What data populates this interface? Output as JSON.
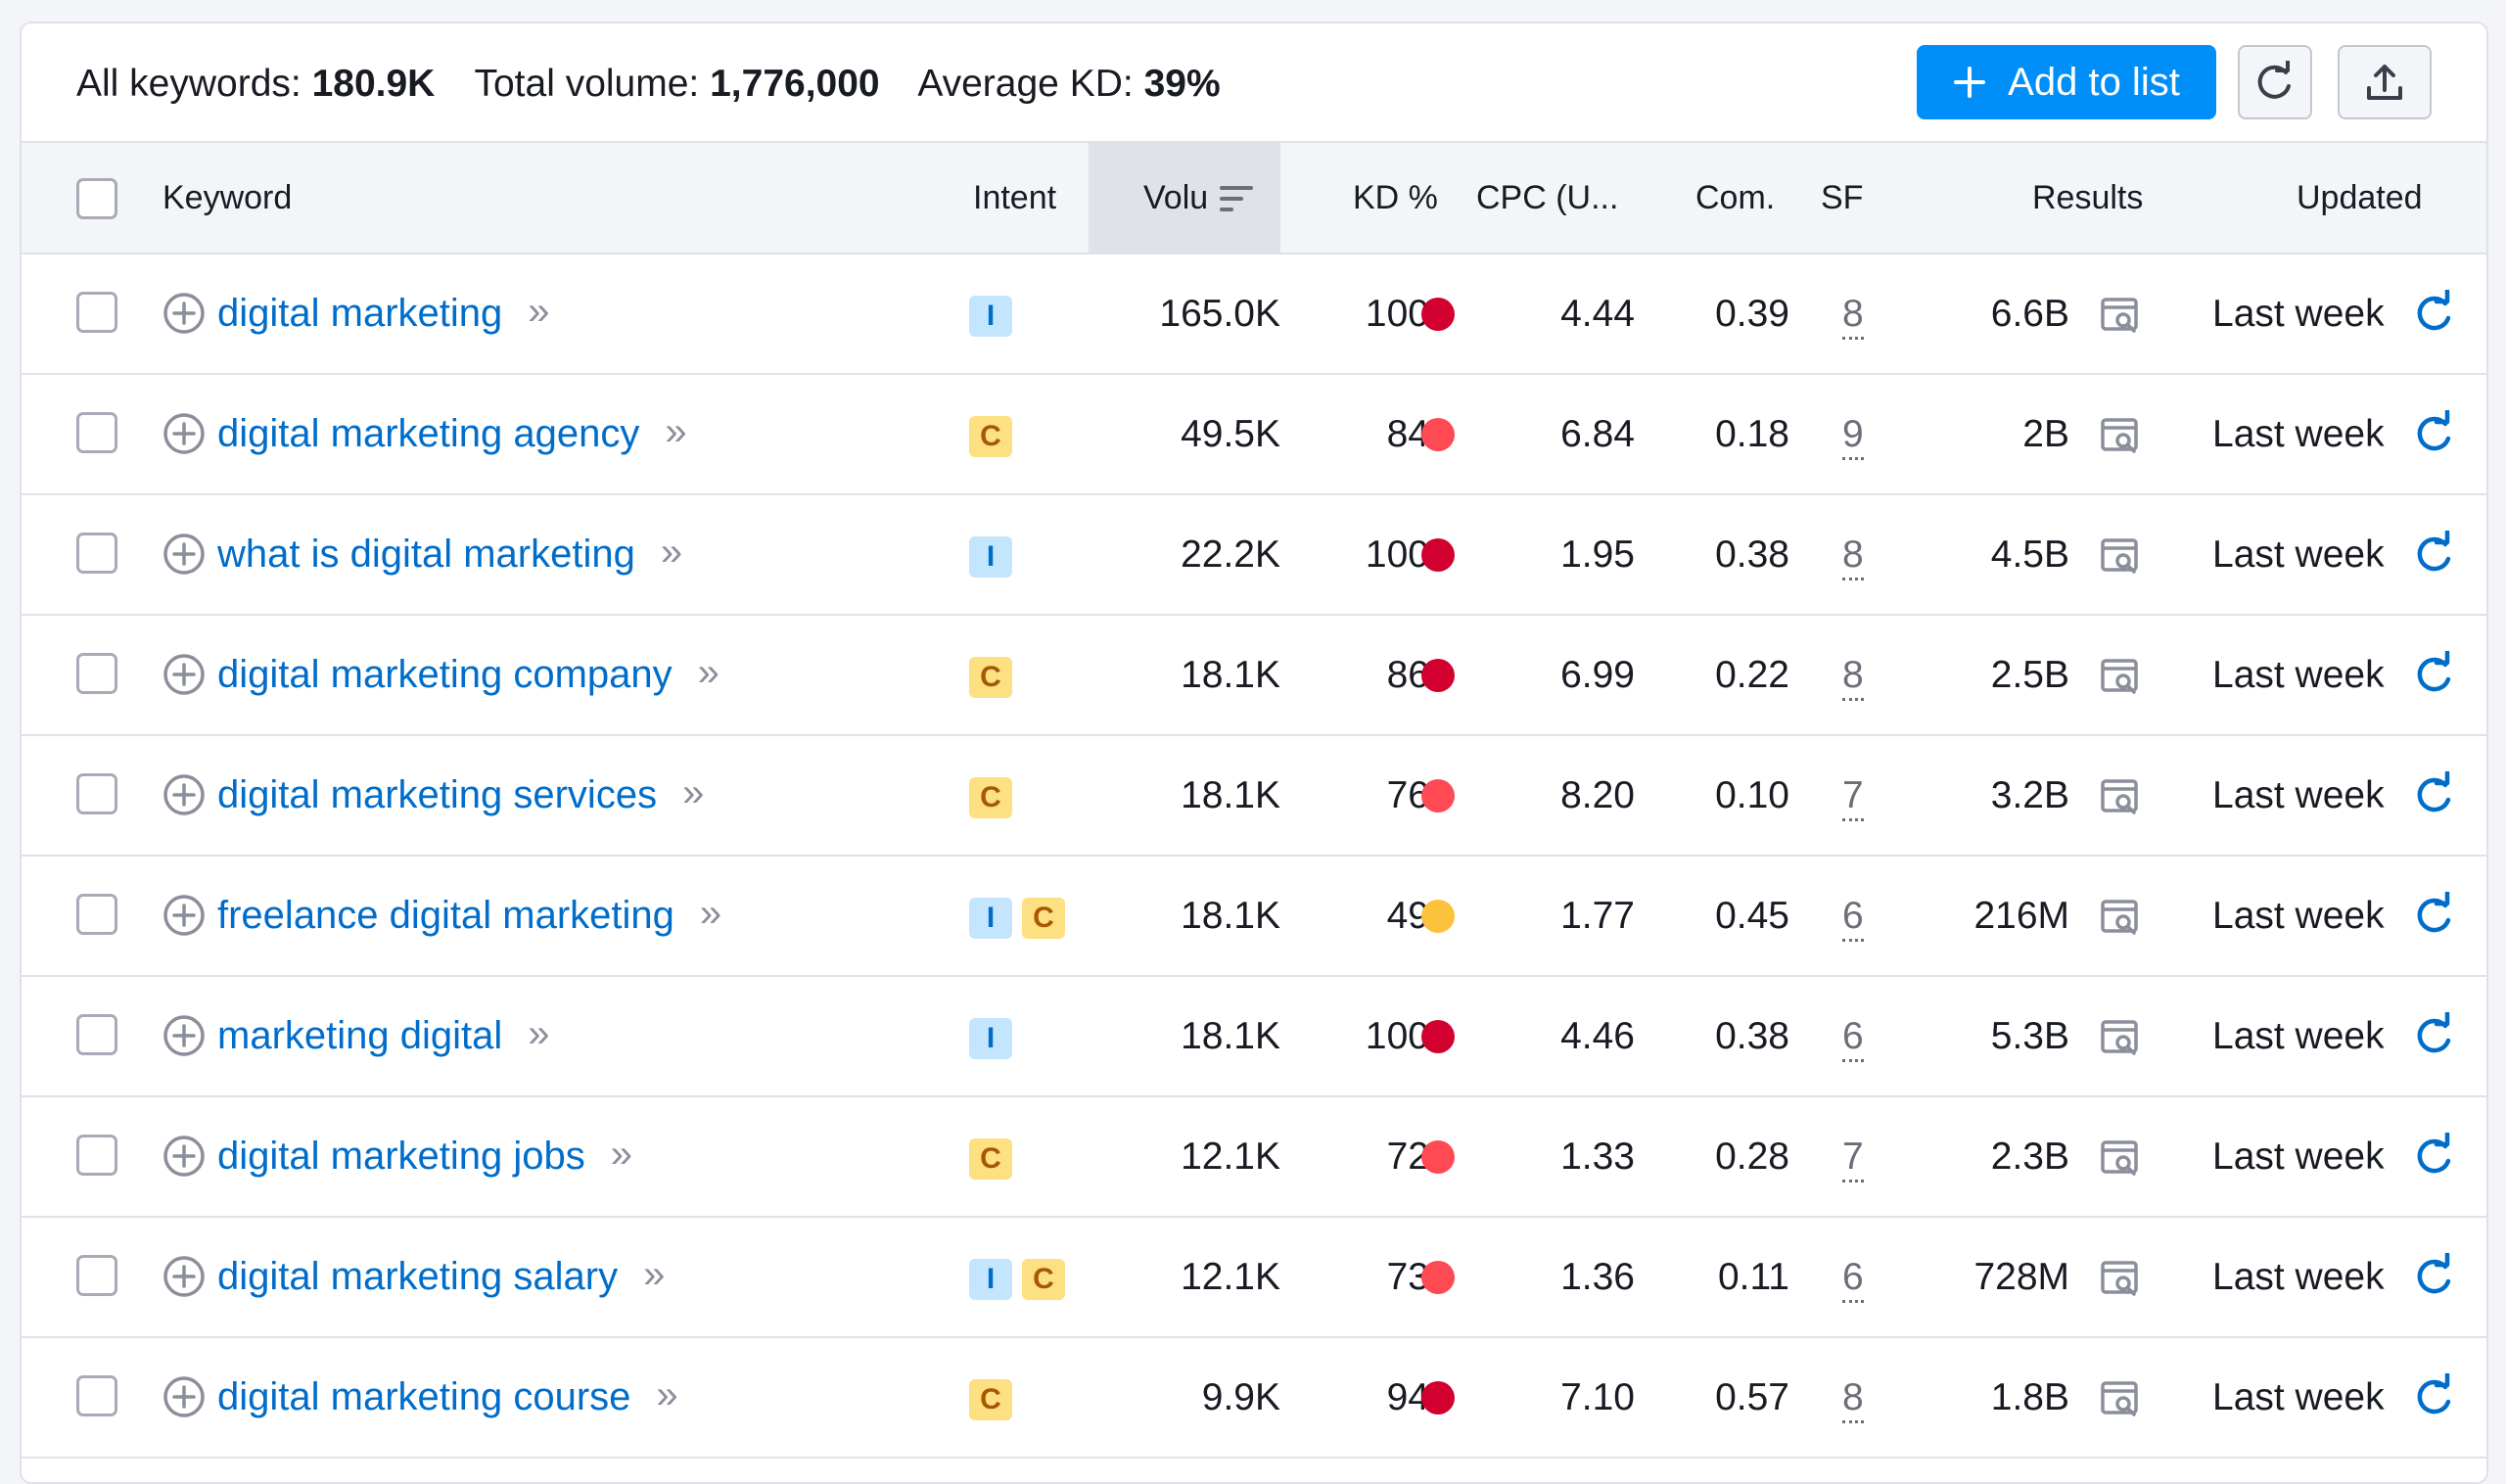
{
  "summary": {
    "all_keywords_label": "All keywords:",
    "all_keywords_value": "180.9K",
    "total_volume_label": "Total volume:",
    "total_volume_value": "1,776,000",
    "avg_kd_label": "Average KD:",
    "avg_kd_value": "39%"
  },
  "toolbar": {
    "add_to_list_label": "Add to list",
    "add_icon": "plus-icon",
    "refresh_icon": "refresh-icon",
    "export_icon": "export-icon"
  },
  "columns": {
    "keyword": "Keyword",
    "intent": "Intent",
    "volume": "Volu",
    "kd": "KD %",
    "cpc": "CPC (U...",
    "com": "Com.",
    "sf": "SF",
    "results": "Results",
    "updated": "Updated"
  },
  "colors": {
    "kd_hard": "#d1002f",
    "kd_difficult": "#ff4953",
    "kd_possible": "#fdc23c",
    "link": "#006dca",
    "accent": "#008ff8"
  },
  "rows": [
    {
      "keyword": "digital marketing",
      "intent": [
        "I"
      ],
      "volume": "165.0K",
      "kd": "100",
      "kd_level": "hard",
      "cpc": "4.44",
      "com": "0.39",
      "sf": "8",
      "results": "6.6B",
      "updated": "Last week"
    },
    {
      "keyword": "digital marketing agency",
      "intent": [
        "C"
      ],
      "volume": "49.5K",
      "kd": "84",
      "kd_level": "difficult",
      "cpc": "6.84",
      "com": "0.18",
      "sf": "9",
      "results": "2B",
      "updated": "Last week"
    },
    {
      "keyword": "what is digital marketing",
      "intent": [
        "I"
      ],
      "volume": "22.2K",
      "kd": "100",
      "kd_level": "hard",
      "cpc": "1.95",
      "com": "0.38",
      "sf": "8",
      "results": "4.5B",
      "updated": "Last week"
    },
    {
      "keyword": "digital marketing company",
      "intent": [
        "C"
      ],
      "volume": "18.1K",
      "kd": "86",
      "kd_level": "hard",
      "cpc": "6.99",
      "com": "0.22",
      "sf": "8",
      "results": "2.5B",
      "updated": "Last week"
    },
    {
      "keyword": "digital marketing services",
      "intent": [
        "C"
      ],
      "volume": "18.1K",
      "kd": "76",
      "kd_level": "difficult",
      "cpc": "8.20",
      "com": "0.10",
      "sf": "7",
      "results": "3.2B",
      "updated": "Last week"
    },
    {
      "keyword": "freelance digital marketing",
      "intent": [
        "I",
        "C"
      ],
      "volume": "18.1K",
      "kd": "49",
      "kd_level": "possible",
      "cpc": "1.77",
      "com": "0.45",
      "sf": "6",
      "results": "216M",
      "updated": "Last week"
    },
    {
      "keyword": "marketing digital",
      "intent": [
        "I"
      ],
      "volume": "18.1K",
      "kd": "100",
      "kd_level": "hard",
      "cpc": "4.46",
      "com": "0.38",
      "sf": "6",
      "results": "5.3B",
      "updated": "Last week"
    },
    {
      "keyword": "digital marketing jobs",
      "intent": [
        "C"
      ],
      "volume": "12.1K",
      "kd": "72",
      "kd_level": "difficult",
      "cpc": "1.33",
      "com": "0.28",
      "sf": "7",
      "results": "2.3B",
      "updated": "Last week"
    },
    {
      "keyword": "digital marketing salary",
      "intent": [
        "I",
        "C"
      ],
      "volume": "12.1K",
      "kd": "73",
      "kd_level": "difficult",
      "cpc": "1.36",
      "com": "0.11",
      "sf": "6",
      "results": "728M",
      "updated": "Last week"
    },
    {
      "keyword": "digital marketing course",
      "intent": [
        "C"
      ],
      "volume": "9.9K",
      "kd": "94",
      "kd_level": "hard",
      "cpc": "7.10",
      "com": "0.57",
      "sf": "8",
      "results": "1.8B",
      "updated": "Last week"
    }
  ]
}
